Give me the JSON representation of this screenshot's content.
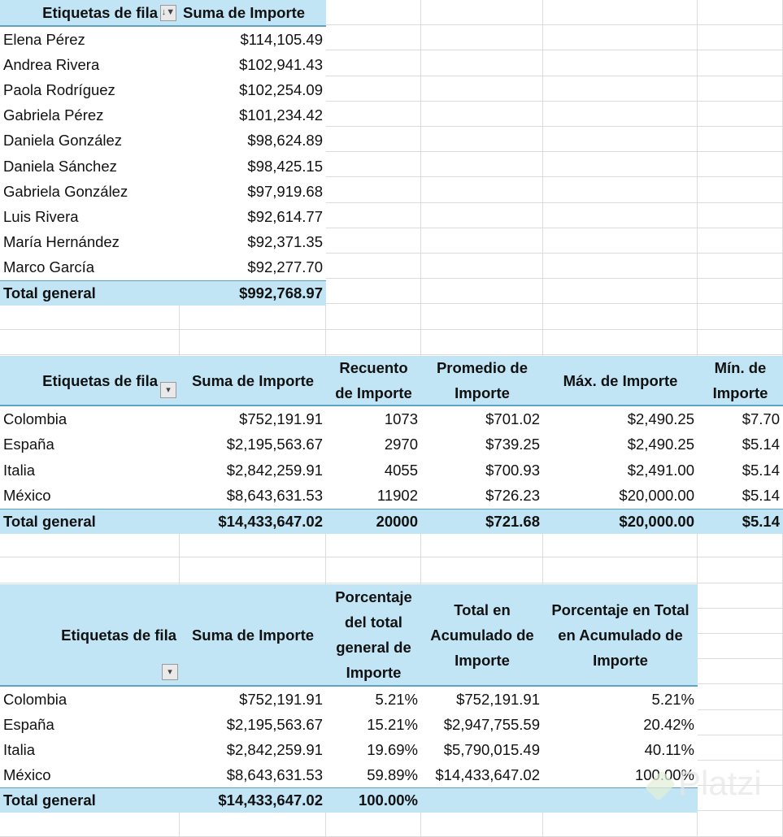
{
  "watermark": "Platzi",
  "tables": [
    {
      "headers": [
        "Etiquetas de fila",
        "Suma de Importe"
      ],
      "filter_icon": "sort-filter-icon",
      "rows": [
        [
          "Elena Pérez",
          "$114,105.49"
        ],
        [
          "Andrea Rivera",
          "$102,941.43"
        ],
        [
          "Paola Rodríguez",
          "$102,254.09"
        ],
        [
          "Gabriela Pérez",
          "$101,234.42"
        ],
        [
          "Daniela González",
          "$98,624.89"
        ],
        [
          "Daniela Sánchez",
          "$98,425.15"
        ],
        [
          "Gabriela González",
          "$97,919.68"
        ],
        [
          "Luis Rivera",
          "$92,614.77"
        ],
        [
          "María Hernández",
          "$92,371.35"
        ],
        [
          "Marco García",
          "$92,277.70"
        ]
      ],
      "total": [
        "Total general",
        "$992,768.97"
      ]
    },
    {
      "headers": [
        "Etiquetas de fila",
        "Suma de Importe",
        "Recuento de Importe",
        "Promedio de Importe",
        "Máx. de Importe",
        "Mín. de Importe"
      ],
      "filter_icon": "dropdown-arrow-icon",
      "rows": [
        [
          "Colombia",
          "$752,191.91",
          "1073",
          "$701.02",
          "$2,490.25",
          "$7.70"
        ],
        [
          "España",
          "$2,195,563.67",
          "2970",
          "$739.25",
          "$2,490.25",
          "$5.14"
        ],
        [
          "Italia",
          "$2,842,259.91",
          "4055",
          "$700.93",
          "$2,491.00",
          "$5.14"
        ],
        [
          "México",
          "$8,643,631.53",
          "11902",
          "$726.23",
          "$20,000.00",
          "$5.14"
        ]
      ],
      "total": [
        "Total general",
        "$14,433,647.02",
        "20000",
        "$721.68",
        "$20,000.00",
        "$5.14"
      ]
    },
    {
      "headers": [
        "Etiquetas de fila",
        "Suma de Importe",
        "Porcentaje del total general de Importe",
        "Total en Acumulado de Importe",
        "Porcentaje en Total en Acumulado de Importe"
      ],
      "filter_icon": "dropdown-arrow-icon",
      "rows": [
        [
          "Colombia",
          "$752,191.91",
          "5.21%",
          "$752,191.91",
          "5.21%"
        ],
        [
          "España",
          "$2,195,563.67",
          "15.21%",
          "$2,947,755.59",
          "20.42%"
        ],
        [
          "Italia",
          "$2,842,259.91",
          "19.69%",
          "$5,790,015.49",
          "40.11%"
        ],
        [
          "México",
          "$8,643,631.53",
          "59.89%",
          "$14,433,647.02",
          "100.00%"
        ]
      ],
      "total": [
        "Total general",
        "$14,433,647.02",
        "100.00%",
        "",
        ""
      ]
    }
  ]
}
